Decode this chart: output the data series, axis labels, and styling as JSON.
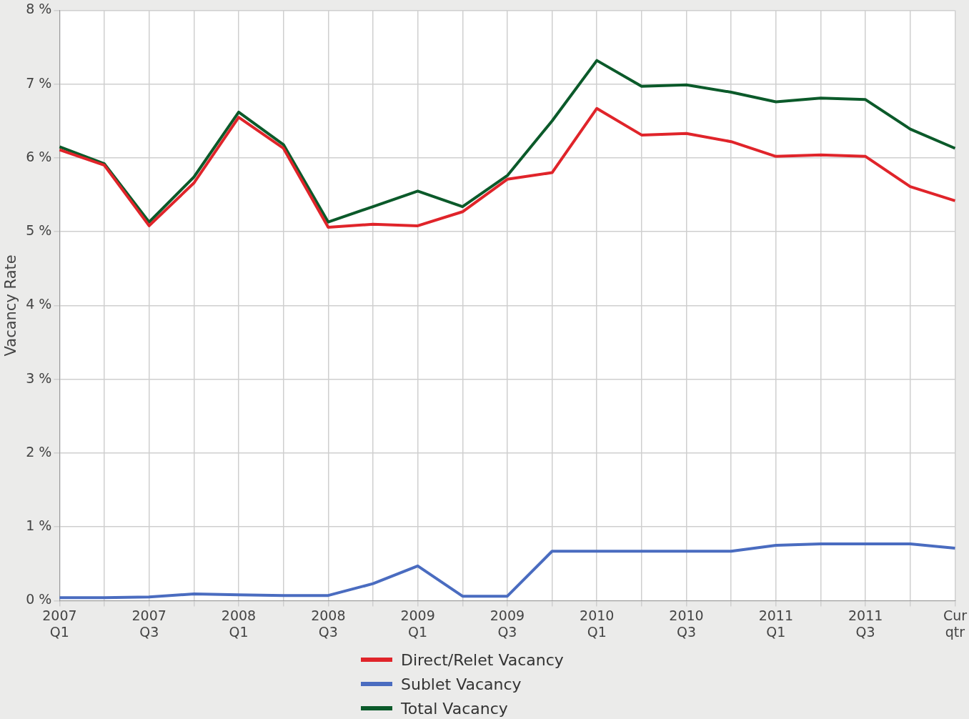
{
  "chart_data": {
    "type": "line",
    "ylabel": "Vacancy Rate",
    "categories": [
      "2007 Q1",
      null,
      "2007 Q3",
      null,
      "2008 Q1",
      null,
      "2008 Q3",
      null,
      "2009 Q1",
      null,
      "2009 Q3",
      null,
      "2010 Q1",
      null,
      "2010 Q3",
      null,
      "2011 Q1",
      null,
      "2011 Q3",
      null,
      "Cur qtr"
    ],
    "series": [
      {
        "name": "Direct/Relet Vacancy",
        "color": "#e0242a",
        "values": [
          6.11,
          5.9,
          5.08,
          5.66,
          6.55,
          6.13,
          5.06,
          5.1,
          5.08,
          5.27,
          5.71,
          5.8,
          6.67,
          6.31,
          6.33,
          6.22,
          6.02,
          6.04,
          6.02,
          5.61,
          5.42
        ]
      },
      {
        "name": "Sublet Vacancy",
        "color": "#4a6cc0",
        "values": [
          0.04,
          0.04,
          0.05,
          0.09,
          0.08,
          0.07,
          0.07,
          0.23,
          0.47,
          0.06,
          0.06,
          0.67,
          0.67,
          0.67,
          0.67,
          0.67,
          0.75,
          0.77,
          0.77,
          0.77,
          0.71
        ]
      },
      {
        "name": "Total Vacancy",
        "color": "#0b5a2a",
        "values": [
          6.15,
          5.92,
          5.13,
          5.74,
          6.62,
          6.18,
          5.13,
          5.34,
          5.55,
          5.34,
          5.76,
          6.5,
          7.32,
          6.97,
          6.99,
          6.89,
          6.76,
          6.81,
          6.79,
          6.39,
          6.13
        ]
      }
    ],
    "ylim": [
      0,
      8
    ],
    "yticks": [
      {
        "value": 0,
        "label": "0 %"
      },
      {
        "value": 1,
        "label": "1 %"
      },
      {
        "value": 2,
        "label": "2 %"
      },
      {
        "value": 3,
        "label": "3 %"
      },
      {
        "value": 4,
        "label": "4 %"
      },
      {
        "value": 5,
        "label": "5 %"
      },
      {
        "value": 6,
        "label": "6 %"
      },
      {
        "value": 7,
        "label": "7 %"
      },
      {
        "value": 8,
        "label": "8 %"
      }
    ],
    "grid": true,
    "legend": "bottom",
    "marker": "none",
    "line_style": "solid"
  }
}
